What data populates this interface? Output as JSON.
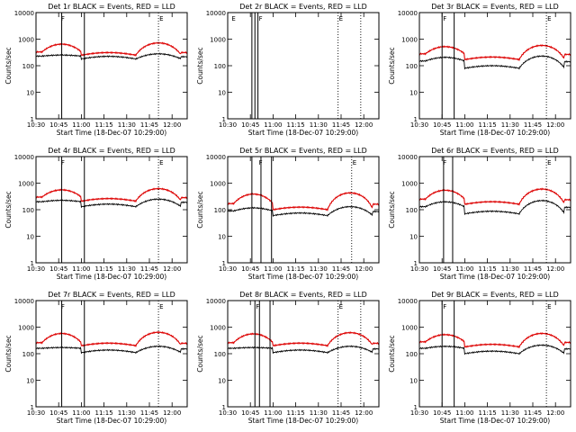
{
  "figure": {
    "colors": {
      "events": "#000000",
      "lld": "#dd0000",
      "background": "#ffffff"
    },
    "x_axis": {
      "tick_labels": [
        "10:30",
        "10:45",
        "11:00",
        "11:15",
        "11:30",
        "11:45",
        "12:00"
      ],
      "tick_minutes": [
        0,
        15,
        30,
        45,
        60,
        75,
        90
      ],
      "range_minutes": [
        0,
        100
      ],
      "label": "Start Time (18-Dec-07 10:29:00)"
    },
    "y_axis": {
      "tick_labels": [
        "1",
        "10",
        "100",
        "1000",
        "10000"
      ],
      "tick_values": [
        1,
        10,
        100,
        1000,
        10000
      ],
      "range": [
        1,
        10000
      ],
      "label": "Counts/sec"
    }
  },
  "chart_data": [
    {
      "type": "line",
      "title": "Det 1r BLACK = Events, RED = LLD",
      "series": [
        {
          "name": "Events",
          "levels": [
            230,
            180,
            280
          ]
        },
        {
          "name": "LLD",
          "levels": [
            330,
            250,
            720
          ]
        }
      ],
      "solid_lines": [
        17,
        32
      ],
      "dotted_lines": [
        81
      ],
      "flags": [
        {
          "t": 16,
          "label": "F"
        },
        {
          "t": 81,
          "label": "E"
        }
      ]
    },
    {
      "type": "line",
      "title": "Det 2r BLACK = Events, RED = LLD",
      "series": [],
      "solid_lines": [
        16,
        18,
        20
      ],
      "dotted_lines": [
        73,
        88
      ],
      "flags": [
        {
          "t": 2,
          "label": "E"
        },
        {
          "t": 20,
          "label": "F"
        },
        {
          "t": 73,
          "label": "E"
        }
      ]
    },
    {
      "type": "line",
      "title": "Det 3r BLACK = Events, RED = LLD",
      "series": [
        {
          "name": "Events",
          "levels": [
            150,
            80,
            230
          ]
        },
        {
          "name": "LLD",
          "levels": [
            280,
            170,
            580
          ]
        }
      ],
      "solid_lines": [
        15,
        23
      ],
      "dotted_lines": [
        84
      ],
      "flags": [
        {
          "t": 15,
          "label": "F"
        },
        {
          "t": 84,
          "label": "E"
        }
      ]
    },
    {
      "type": "line",
      "title": "Det 4r BLACK = Events, RED = LLD",
      "series": [
        {
          "name": "Events",
          "levels": [
            200,
            130,
            250
          ]
        },
        {
          "name": "LLD",
          "levels": [
            300,
            210,
            620
          ]
        }
      ],
      "solid_lines": [
        17,
        32
      ],
      "dotted_lines": [
        81
      ],
      "flags": [
        {
          "t": 16,
          "label": "F"
        },
        {
          "t": 81,
          "label": "E"
        }
      ]
    },
    {
      "type": "line",
      "title": "Det 5r BLACK = Events, RED = LLD",
      "series": [
        {
          "name": "Events",
          "levels": [
            90,
            60,
            130
          ]
        },
        {
          "name": "LLD",
          "levels": [
            170,
            100,
            430
          ]
        }
      ],
      "solid_lines": [
        16,
        22,
        29
      ],
      "dotted_lines": [
        82
      ],
      "flags": [
        {
          "t": 20,
          "label": "F"
        },
        {
          "t": 82,
          "label": "E"
        }
      ]
    },
    {
      "type": "line",
      "title": "Det 6r BLACK = Events, RED = LLD",
      "series": [
        {
          "name": "Events",
          "levels": [
            130,
            70,
            220
          ]
        },
        {
          "name": "LLD",
          "levels": [
            250,
            160,
            600
          ]
        }
      ],
      "solid_lines": [
        16,
        22
      ],
      "dotted_lines": [
        84
      ],
      "flags": [
        {
          "t": 15,
          "label": "F"
        },
        {
          "t": 84,
          "label": "E"
        }
      ]
    },
    {
      "type": "line",
      "title": "Det 7r BLACK = Events, RED = LLD",
      "series": [
        {
          "name": "Events",
          "levels": [
            160,
            110,
            190
          ]
        },
        {
          "name": "LLD",
          "levels": [
            260,
            200,
            640
          ]
        }
      ],
      "solid_lines": [
        17,
        32
      ],
      "dotted_lines": [
        81
      ],
      "flags": [
        {
          "t": 16,
          "label": "F"
        },
        {
          "t": 81,
          "label": "E"
        }
      ]
    },
    {
      "type": "line",
      "title": "Det 8r BLACK = Events, RED = LLD",
      "series": [
        {
          "name": "Events",
          "levels": [
            160,
            110,
            190
          ]
        },
        {
          "name": "LLD",
          "levels": [
            260,
            200,
            620
          ]
        }
      ],
      "solid_lines": [
        18,
        21,
        28
      ],
      "dotted_lines": [
        73,
        88
      ],
      "flags": [
        {
          "t": 18,
          "label": "F"
        },
        {
          "t": 73,
          "label": "E"
        }
      ]
    },
    {
      "type": "line",
      "title": "Det 9r BLACK = Events, RED = LLD",
      "series": [
        {
          "name": "Events",
          "levels": [
            160,
            100,
            210
          ]
        },
        {
          "name": "LLD",
          "levels": [
            280,
            180,
            580
          ]
        }
      ],
      "solid_lines": [
        15,
        23
      ],
      "dotted_lines": [
        84
      ],
      "flags": [
        {
          "t": 15,
          "label": "F"
        },
        {
          "t": 84,
          "label": "E"
        }
      ]
    }
  ]
}
